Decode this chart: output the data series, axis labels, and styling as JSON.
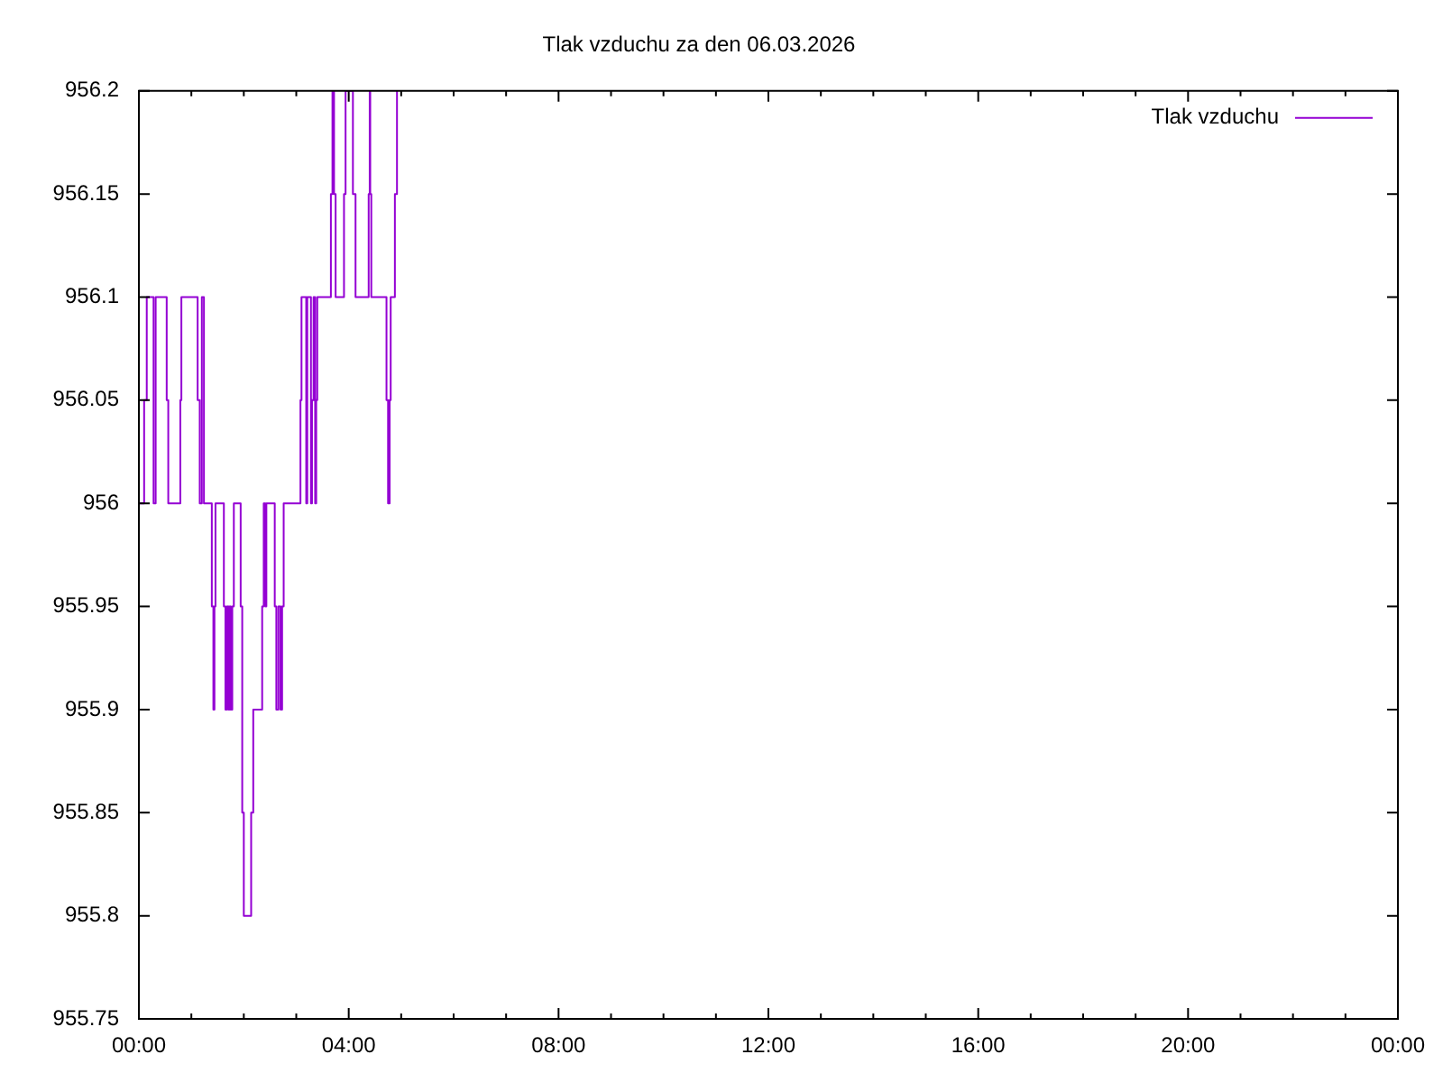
{
  "chart_data": {
    "type": "step",
    "title": "Tlak vzduchu za den 06.03.2026",
    "x": [
      0,
      0.1,
      0.15,
      0.28,
      0.32,
      0.53,
      0.56,
      0.79,
      0.81,
      1.12,
      1.16,
      1.2,
      1.24,
      1.39,
      1.42,
      1.44,
      1.46,
      1.62,
      1.65,
      1.68,
      1.71,
      1.73,
      1.75,
      1.78,
      1.81,
      1.94,
      1.97,
      2.0,
      2.14,
      2.18,
      2.35,
      2.38,
      2.41,
      2.43,
      2.59,
      2.62,
      2.66,
      2.7,
      2.73,
      2.76,
      3.08,
      3.1,
      3.19,
      3.21,
      3.28,
      3.3,
      3.33,
      3.36,
      3.38,
      3.4,
      3.66,
      3.69,
      3.72,
      3.75,
      3.91,
      3.94,
      4.08,
      4.13,
      4.38,
      4.4,
      4.41,
      4.43,
      4.72,
      4.75,
      4.78,
      4.8,
      4.88,
      4.92
    ],
    "series": [
      {
        "name": "Tlak vzduchu",
        "color": "#9400d3",
        "values": [
          956.0,
          956.05,
          956.1,
          956.0,
          956.1,
          956.05,
          956.0,
          956.05,
          956.1,
          956.05,
          956.0,
          956.1,
          956.0,
          955.95,
          955.9,
          955.95,
          956.0,
          955.95,
          955.9,
          955.95,
          955.9,
          955.95,
          955.9,
          955.95,
          956.0,
          955.95,
          955.85,
          955.8,
          955.85,
          955.9,
          955.95,
          956.0,
          955.95,
          956.0,
          955.95,
          955.9,
          955.95,
          955.9,
          955.95,
          956.0,
          956.05,
          956.1,
          956.0,
          956.1,
          956.0,
          956.05,
          956.1,
          956.0,
          956.05,
          956.1,
          956.15,
          956.2,
          956.15,
          956.1,
          956.15,
          956.2,
          956.15,
          956.1,
          956.15,
          956.2,
          956.15,
          956.1,
          956.05,
          956.0,
          956.05,
          956.1,
          956.15,
          956.2
        ]
      }
    ],
    "xlim": [
      0,
      24
    ],
    "xticks": [
      {
        "value": 0,
        "label": "00:00"
      },
      {
        "value": 1,
        "label": null
      },
      {
        "value": 2,
        "label": null
      },
      {
        "value": 3,
        "label": null
      },
      {
        "value": 4,
        "label": "04:00"
      },
      {
        "value": 5,
        "label": null
      },
      {
        "value": 6,
        "label": null
      },
      {
        "value": 7,
        "label": null
      },
      {
        "value": 8,
        "label": "08:00"
      },
      {
        "value": 9,
        "label": null
      },
      {
        "value": 10,
        "label": null
      },
      {
        "value": 11,
        "label": null
      },
      {
        "value": 12,
        "label": "12:00"
      },
      {
        "value": 13,
        "label": null
      },
      {
        "value": 14,
        "label": null
      },
      {
        "value": 15,
        "label": null
      },
      {
        "value": 16,
        "label": "16:00"
      },
      {
        "value": 17,
        "label": null
      },
      {
        "value": 18,
        "label": null
      },
      {
        "value": 19,
        "label": null
      },
      {
        "value": 20,
        "label": "20:00"
      },
      {
        "value": 21,
        "label": null
      },
      {
        "value": 22,
        "label": null
      },
      {
        "value": 23,
        "label": null
      },
      {
        "value": 24,
        "label": "00:00"
      }
    ],
    "ylim": [
      955.75,
      956.2
    ],
    "yticks": [
      955.75,
      955.8,
      955.85,
      955.9,
      955.95,
      956,
      956.05,
      956.1,
      956.15,
      956.2
    ],
    "legend": "top right"
  }
}
